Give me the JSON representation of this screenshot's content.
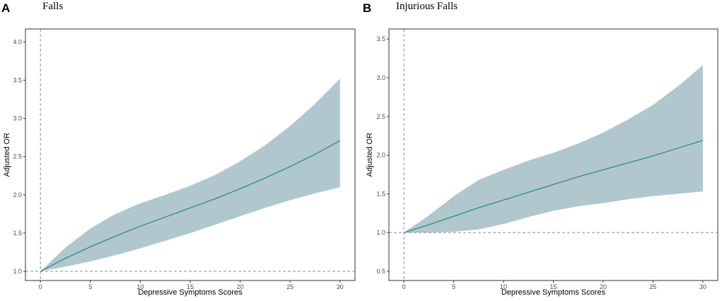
{
  "chart_data": [
    {
      "panel": "A",
      "type": "line",
      "title": "Falls",
      "xlabel": "Depressive Symptoms Scores",
      "ylabel": "Adjusted OR",
      "xlim": [
        -1.5,
        31.5
      ],
      "ylim": [
        0.88,
        4.17
      ],
      "xticks": [
        0,
        5,
        10,
        15,
        20,
        25,
        30
      ],
      "yticks": [
        1.0,
        1.5,
        2.0,
        2.5,
        3.0,
        3.5,
        4.0
      ],
      "reference_lines": {
        "x": 0,
        "y": 1.0
      },
      "colors": {
        "line": "#2e8b84",
        "band": "#b0c8cd",
        "ref": "#8c8c8c"
      },
      "x": [
        0,
        2.5,
        5,
        7.5,
        10,
        12.5,
        15,
        17.5,
        20,
        22.5,
        25,
        27.5,
        30
      ],
      "or": [
        1.0,
        1.17,
        1.32,
        1.46,
        1.59,
        1.71,
        1.83,
        1.95,
        2.08,
        2.22,
        2.37,
        2.53,
        2.71
      ],
      "lower": [
        1.0,
        1.06,
        1.13,
        1.21,
        1.3,
        1.4,
        1.5,
        1.61,
        1.72,
        1.83,
        1.93,
        2.02,
        2.1
      ],
      "upper": [
        1.0,
        1.31,
        1.56,
        1.75,
        1.89,
        2.0,
        2.12,
        2.26,
        2.44,
        2.65,
        2.9,
        3.19,
        3.52
      ]
    },
    {
      "panel": "B",
      "type": "line",
      "title": "Injurious Falls",
      "xlabel": "Depressive Symptoms Scores",
      "ylabel": "Adjusted OR",
      "xlim": [
        -1.5,
        31.5
      ],
      "ylim": [
        0.38,
        3.63
      ],
      "xticks": [
        0,
        5,
        10,
        15,
        20,
        25,
        30
      ],
      "yticks": [
        0.5,
        1.0,
        1.5,
        2.0,
        2.5,
        3.0,
        3.5
      ],
      "reference_lines": {
        "x": 0,
        "y": 1.0
      },
      "colors": {
        "line": "#2e8b84",
        "band": "#b0c8cd",
        "ref": "#8c8c8c"
      },
      "x": [
        0,
        2.5,
        5,
        7.5,
        10,
        12.5,
        15,
        17.5,
        20,
        22.5,
        25,
        27.5,
        30
      ],
      "or": [
        1.0,
        1.1,
        1.21,
        1.32,
        1.42,
        1.52,
        1.62,
        1.72,
        1.81,
        1.9,
        1.99,
        2.09,
        2.19
      ],
      "lower": [
        1.0,
        1.0,
        1.01,
        1.04,
        1.11,
        1.2,
        1.28,
        1.34,
        1.38,
        1.43,
        1.47,
        1.5,
        1.53
      ],
      "upper": [
        1.0,
        1.22,
        1.47,
        1.68,
        1.81,
        1.93,
        2.03,
        2.15,
        2.29,
        2.46,
        2.65,
        2.89,
        3.16
      ]
    }
  ]
}
